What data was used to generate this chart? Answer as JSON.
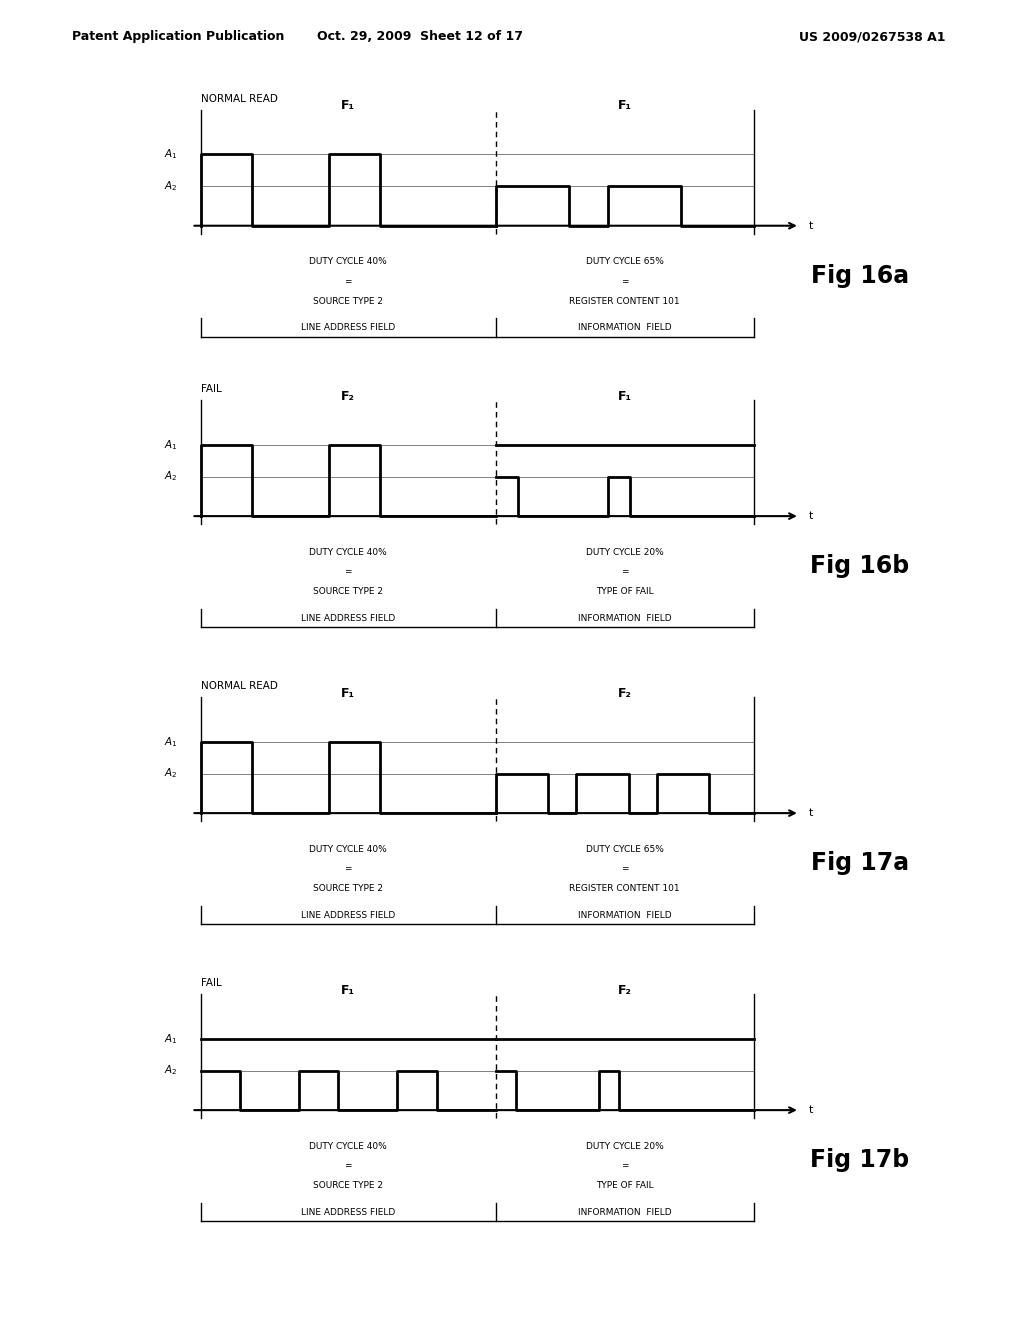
{
  "header_left": "Patent Application Publication",
  "header_mid": "Oct. 29, 2009  Sheet 12 of 17",
  "header_right": "US 2009/0267538 A1",
  "bg_color": "#ffffff",
  "diagrams": [
    {
      "title": "NORMAL READ",
      "fig_label": "Fig 16a",
      "field1_label": "F₁",
      "field2_label": "F₁",
      "field1_text": "DUTY CYCLE 40%\n=\nSOURCE TYPE 2",
      "field2_text": "DUTY CYCLE 65%\n=\nREGISTER CONTENT 101",
      "bottom_left": "LINE ADDRESS FIELD",
      "bottom_right": "INFORMATION  FIELD",
      "signal_type": "16a"
    },
    {
      "title": "FAIL",
      "fig_label": "Fig 16b",
      "field1_label": "F₂",
      "field2_label": "F₁",
      "field1_text": "DUTY CYCLE 40%\n=\nSOURCE TYPE 2",
      "field2_text": "DUTY CYCLE 20%\n=\nTYPE OF FAIL",
      "bottom_left": "LINE ADDRESS FIELD",
      "bottom_right": "INFORMATION  FIELD",
      "signal_type": "16b"
    },
    {
      "title": "NORMAL READ",
      "fig_label": "Fig 17a",
      "field1_label": "F₁",
      "field2_label": "F₂",
      "field1_text": "DUTY CYCLE 40%\n=\nSOURCE TYPE 2",
      "field2_text": "DUTY CYCLE 65%\n=\nREGISTER CONTENT 101",
      "bottom_left": "LINE ADDRESS FIELD",
      "bottom_right": "INFORMATION  FIELD",
      "signal_type": "17a"
    },
    {
      "title": "FAIL",
      "fig_label": "Fig 17b",
      "field1_label": "F₁",
      "field2_label": "F₂",
      "field1_text": "DUTY CYCLE 40%\n=\nSOURCE TYPE 2",
      "field2_text": "DUTY CYCLE 20%\n=\nTYPE OF FAIL",
      "bottom_left": "LINE ADDRESS FIELD",
      "bottom_right": "INFORMATION  FIELD",
      "signal_type": "17b"
    }
  ]
}
